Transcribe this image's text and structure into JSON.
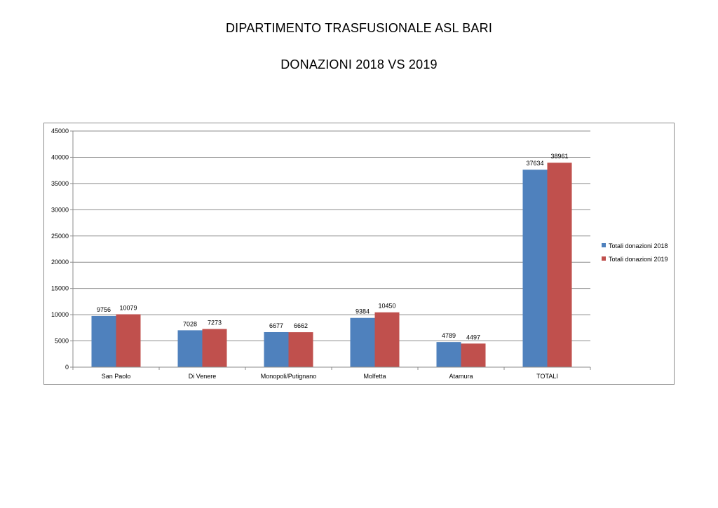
{
  "page": {
    "title_line1": "DIPARTIMENTO TRASFUSIONALE ASL BARI",
    "title_line2": "DONAZIONI 2018 VS 2019"
  },
  "chart_data": {
    "type": "bar",
    "title": "",
    "xlabel": "",
    "ylabel": "",
    "categories": [
      "San Paolo",
      "Di Venere",
      "Monopoli/Putignano",
      "Molfetta",
      "Atamura",
      "TOTALI"
    ],
    "series": [
      {
        "name": "Totali donazioni 2018",
        "color": "#4F81BD",
        "values": [
          9756,
          7028,
          6677,
          9384,
          4789,
          37634
        ]
      },
      {
        "name": "Totali donazioni 2019",
        "color": "#C0504D",
        "values": [
          10079,
          7273,
          6662,
          10450,
          4497,
          38961
        ]
      }
    ],
    "ylim": [
      0,
      45000
    ],
    "yticks": [
      0,
      5000,
      10000,
      15000,
      20000,
      25000,
      30000,
      35000,
      40000,
      45000
    ],
    "grid": true,
    "data_labels": true,
    "legend_position": "right"
  }
}
